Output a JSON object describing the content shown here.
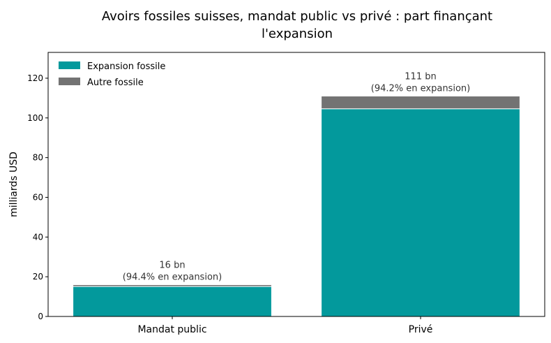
{
  "chart_data": {
    "type": "bar",
    "stacked": true,
    "title_lines": [
      "Avoirs fossiles suisses, mandat public vs privé : part finançant",
      "l'expansion"
    ],
    "xlabel": "",
    "ylabel": "milliards USD",
    "ylim": [
      0,
      133
    ],
    "yticks": [
      0,
      20,
      40,
      60,
      80,
      100,
      120
    ],
    "categories": [
      "Mandat public",
      "Privé"
    ],
    "series": [
      {
        "name": "Expansion fossile",
        "color": "#03999c",
        "values": [
          15.1,
          104.6
        ]
      },
      {
        "name": "Autre fossile",
        "color": "#737373",
        "values": [
          0.9,
          6.4
        ]
      }
    ],
    "bar_labels": [
      {
        "total": "16 bn",
        "share": "(94.4% en expansion)"
      },
      {
        "total": "111 bn",
        "share": "(94.2% en expansion)"
      }
    ],
    "grid": false,
    "legend_position": "top-left"
  }
}
